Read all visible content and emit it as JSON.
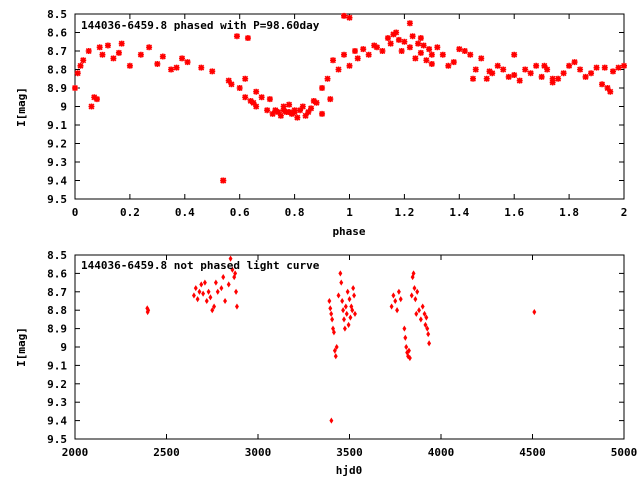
{
  "chart_data": [
    {
      "type": "scatter",
      "title": "144036-6459.8 phased with P=98.60day",
      "xlabel": "phase",
      "ylabel": "I[mag]",
      "xlim": [
        0,
        2
      ],
      "ylim": [
        9.5,
        8.5
      ],
      "y_axis_inverted": true,
      "x_ticks": [
        "0",
        "0.2",
        "0.4",
        "0.6",
        "0.8",
        "1",
        "1.2",
        "1.4",
        "1.6",
        "1.8",
        "2"
      ],
      "y_ticks": [
        "8.5",
        "8.6",
        "8.7",
        "8.8",
        "8.9",
        "9",
        "9.1",
        "9.2",
        "9.3",
        "9.4",
        "9.5"
      ],
      "grid": false,
      "color": "#ff0000",
      "marker": "star",
      "series": [
        {
          "x": [
            0.0,
            0.01,
            0.02,
            0.03,
            0.05,
            0.06,
            0.07,
            0.09,
            0.1,
            0.12,
            0.14,
            0.16,
            0.17,
            0.2,
            0.24,
            0.27,
            0.3,
            0.32,
            0.35,
            0.37,
            0.39,
            0.41,
            0.46,
            0.5,
            0.54,
            0.56,
            0.57,
            0.6,
            0.62,
            0.64,
            0.65,
            0.66,
            0.68,
            0.7,
            0.72,
            0.74,
            0.75,
            0.76,
            0.77,
            0.78,
            0.79,
            0.8,
            0.81,
            0.82,
            0.83,
            0.85,
            0.86,
            0.87,
            0.88,
            0.9,
            0.92,
            0.94,
            0.96,
            0.98,
            1.0,
            1.02,
            1.03,
            1.05,
            1.07,
            1.09,
            1.1,
            1.12,
            1.14,
            1.15,
            1.16,
            1.17,
            1.18,
            1.19,
            1.2,
            1.22,
            1.23,
            1.24,
            1.25,
            1.26,
            1.27,
            1.28,
            1.29,
            1.3,
            1.32,
            1.34,
            1.36,
            1.38,
            1.4,
            1.42,
            1.44,
            1.46,
            1.48,
            1.5,
            1.52,
            1.54,
            1.56,
            1.58,
            1.6,
            1.62,
            1.64,
            1.66,
            1.68,
            1.7,
            1.72,
            1.74,
            1.76,
            1.78,
            1.8,
            1.82,
            1.84,
            1.86,
            1.88,
            1.9,
            1.92,
            1.94,
            1.96,
            1.98,
            2.0,
            0.08,
            0.54,
            0.63,
            0.98,
            1.0,
            1.22,
            1.26,
            1.3,
            1.45,
            1.51,
            1.6,
            1.71,
            1.74,
            1.93,
            1.95,
            0.59,
            0.62,
            0.66,
            0.71,
            0.73,
            0.76,
            0.78,
            0.8,
            0.84,
            0.9,
            0.93
          ],
          "y": [
            8.9,
            8.82,
            8.78,
            8.75,
            8.7,
            9.0,
            8.95,
            8.68,
            8.72,
            8.67,
            8.74,
            8.71,
            8.66,
            8.78,
            8.72,
            8.68,
            8.77,
            8.73,
            8.8,
            8.79,
            8.74,
            8.76,
            8.79,
            8.81,
            9.4,
            8.86,
            8.88,
            8.9,
            8.95,
            8.97,
            8.98,
            9.0,
            8.95,
            9.02,
            9.04,
            9.03,
            9.05,
            9.02,
            9.03,
            8.99,
            9.04,
            9.03,
            9.06,
            9.02,
            9.0,
            9.03,
            9.01,
            8.97,
            8.98,
            8.9,
            8.85,
            8.75,
            8.8,
            8.72,
            8.78,
            8.7,
            8.74,
            8.69,
            8.72,
            8.67,
            8.68,
            8.7,
            8.63,
            8.66,
            8.61,
            8.6,
            8.64,
            8.7,
            8.65,
            8.68,
            8.62,
            8.74,
            8.66,
            8.71,
            8.67,
            8.75,
            8.69,
            8.77,
            8.68,
            8.72,
            8.78,
            8.76,
            8.69,
            8.7,
            8.72,
            8.8,
            8.74,
            8.85,
            8.82,
            8.78,
            8.8,
            8.84,
            8.83,
            8.86,
            8.8,
            8.82,
            8.78,
            8.84,
            8.8,
            8.87,
            8.85,
            8.82,
            8.78,
            8.76,
            8.8,
            8.84,
            8.82,
            8.79,
            8.88,
            8.9,
            8.81,
            8.79,
            8.78,
            8.96,
            9.4,
            8.63,
            8.51,
            8.52,
            8.55,
            8.63,
            8.72,
            8.85,
            8.81,
            8.72,
            8.78,
            8.85,
            8.79,
            8.92,
            8.62,
            8.85,
            8.92,
            8.96,
            9.02,
            9.0,
            9.03,
            9.02,
            9.05,
            9.04,
            8.96
          ]
        }
      ]
    },
    {
      "type": "scatter",
      "title": "144036-6459.8 not phased light curve",
      "xlabel": "hjd0",
      "ylabel": "I[mag]",
      "xlim": [
        2000,
        5000
      ],
      "ylim": [
        9.5,
        8.5
      ],
      "y_axis_inverted": true,
      "x_ticks": [
        "2000",
        "2500",
        "3000",
        "3500",
        "4000",
        "4500",
        "5000"
      ],
      "y_ticks": [
        "8.5",
        "8.6",
        "8.7",
        "8.8",
        "8.9",
        "9",
        "9.1",
        "9.2",
        "9.3",
        "9.4",
        "9.5"
      ],
      "grid": false,
      "color": "#ff0000",
      "marker": "diamond",
      "series": [
        {
          "x": [
            2395,
            2397,
            2400,
            2650,
            2660,
            2670,
            2680,
            2690,
            2700,
            2710,
            2720,
            2730,
            2740,
            2750,
            2760,
            2770,
            2780,
            2800,
            2810,
            2820,
            2840,
            2850,
            2860,
            2870,
            2875,
            2880,
            2885,
            3390,
            3395,
            3400,
            3405,
            3410,
            3415,
            3420,
            3425,
            3430,
            3440,
            3450,
            3455,
            3460,
            3465,
            3470,
            3475,
            3480,
            3485,
            3490,
            3495,
            3500,
            3505,
            3510,
            3515,
            3520,
            3525,
            3530,
            3730,
            3740,
            3750,
            3760,
            3770,
            3780,
            3800,
            3805,
            3810,
            3815,
            3820,
            3825,
            3830,
            3840,
            3845,
            3850,
            3855,
            3860,
            3865,
            3870,
            3880,
            3890,
            3900,
            3910,
            3915,
            3920,
            3925,
            3930,
            3935,
            4510,
            3401
          ],
          "y": [
            8.79,
            8.81,
            8.8,
            8.72,
            8.68,
            8.74,
            8.7,
            8.66,
            8.71,
            8.65,
            8.75,
            8.7,
            8.73,
            8.8,
            8.78,
            8.65,
            8.7,
            8.68,
            8.62,
            8.75,
            8.66,
            8.52,
            8.58,
            8.62,
            8.6,
            8.7,
            8.78,
            8.75,
            8.79,
            8.82,
            8.85,
            8.9,
            8.92,
            9.02,
            9.05,
            9.0,
            8.72,
            8.6,
            8.65,
            8.75,
            8.8,
            8.85,
            8.9,
            8.78,
            8.82,
            8.7,
            8.88,
            8.74,
            8.84,
            8.78,
            8.8,
            8.68,
            8.72,
            8.82,
            8.78,
            8.72,
            8.75,
            8.8,
            8.7,
            8.74,
            8.9,
            8.95,
            9.0,
            9.03,
            9.05,
            9.02,
            9.06,
            8.72,
            8.62,
            8.6,
            8.68,
            8.74,
            8.82,
            8.7,
            8.8,
            8.85,
            8.78,
            8.82,
            8.88,
            8.84,
            8.9,
            8.93,
            8.98,
            8.81,
            9.4
          ]
        }
      ]
    }
  ]
}
